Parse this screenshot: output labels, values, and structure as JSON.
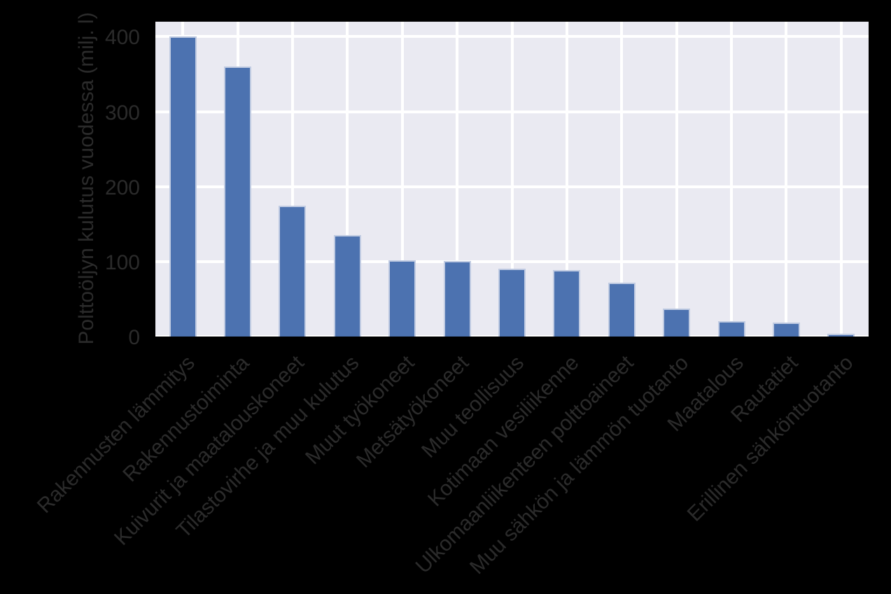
{
  "figure": {
    "background_color": "#000000",
    "plot_background_color": "#eaeaf2",
    "grid_color": "#ffffff",
    "text_color": "#2b2b2b",
    "bar_color": "#4c72b0",
    "bar_edge_color": "#d5dbeb"
  },
  "chart_data": {
    "type": "bar",
    "title": "",
    "xlabel": "",
    "ylabel": "Polttoöljyn kulutus vuodessa (milj. l)",
    "categories": [
      "Rakennusten lämmitys",
      "Rakennustoiminta",
      "Kuivurit ja maatalouskoneet",
      "Tilastovirhe ja muu kulutus",
      "Muut työkoneet",
      "Metsätyökoneet",
      "Muu teollisuus",
      "Kotimaan vesiliikenne",
      "Ulkomaanliikenteen polttoaineet",
      "Muu sähkön ja lämmön tuotanto",
      "Maatalous",
      "Rautatiet",
      "Erillinen sähköntuotanto"
    ],
    "values": [
      400,
      360,
      175,
      135,
      102,
      101,
      91,
      89,
      72,
      37,
      21,
      19,
      4
    ],
    "yticks": [
      0,
      100,
      200,
      300,
      400
    ],
    "ytick_labels": [
      "0",
      "100",
      "200",
      "300",
      "400"
    ],
    "ylim": [
      0,
      420
    ],
    "grid": true,
    "legend": "none",
    "x_tick_label_rotation_deg": 45,
    "series_color": "#4c72b0"
  }
}
